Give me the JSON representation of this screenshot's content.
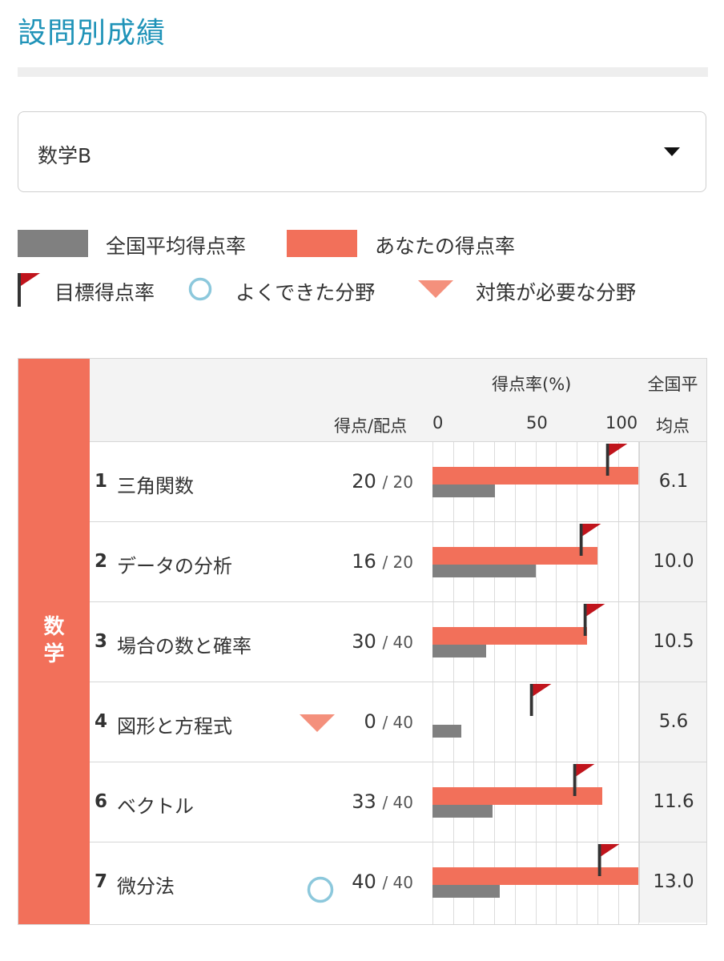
{
  "page": {
    "title": "設問別成績"
  },
  "select": {
    "value": "数学B"
  },
  "legend": {
    "national_avg": "全国平均得点率",
    "your_rate": "あなたの得点率",
    "target": "目標得点率",
    "good": "よくできた分野",
    "needs_work": "対策が必要な分野"
  },
  "colors": {
    "accent": "#1f93b8",
    "you": "#f2705a",
    "avg": "#808080",
    "flag": "#c0141c",
    "good": "#8cc8dc",
    "needs_work": "#f4907c"
  },
  "table": {
    "subject": "数学",
    "header": {
      "rate_label": "得点率(%)",
      "score_label": "得点/配点",
      "tick_0": "0",
      "tick_50": "50",
      "tick_100": "100",
      "avg_label_1": "全国平",
      "avg_label_2": "均点"
    },
    "rows": [
      {
        "num": "1",
        "name": "三角関数",
        "score": "20",
        "max": "/ 20",
        "avg": "6.1",
        "you_pct": 100,
        "avg_pct": 30.5,
        "target_pct": 85,
        "mark": ""
      },
      {
        "num": "2",
        "name": "データの分析",
        "score": "16",
        "max": "/ 20",
        "avg": "10.0",
        "you_pct": 80,
        "avg_pct": 50,
        "target_pct": 72,
        "mark": ""
      },
      {
        "num": "3",
        "name": "場合の数と確率",
        "score": "30",
        "max": "/ 40",
        "avg": "10.5",
        "you_pct": 75,
        "avg_pct": 26.25,
        "target_pct": 74,
        "mark": ""
      },
      {
        "num": "4",
        "name": "図形と方程式",
        "score": "0",
        "max": "/ 40",
        "avg": "5.6",
        "you_pct": 0,
        "avg_pct": 14,
        "target_pct": 48,
        "mark": "needs_work"
      },
      {
        "num": "6",
        "name": "ベクトル",
        "score": "33",
        "max": "/ 40",
        "avg": "11.6",
        "you_pct": 82.5,
        "avg_pct": 29,
        "target_pct": 69,
        "mark": ""
      },
      {
        "num": "7",
        "name": "微分法",
        "score": "40",
        "max": "/ 40",
        "avg": "13.0",
        "you_pct": 100,
        "avg_pct": 32.5,
        "target_pct": 81,
        "mark": "good"
      }
    ]
  }
}
